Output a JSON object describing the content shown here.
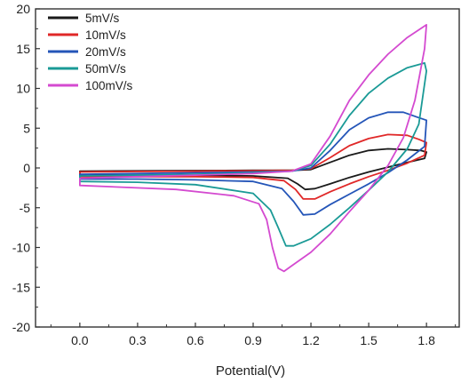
{
  "chart_data": {
    "type": "line",
    "title": "",
    "xlabel": "Potential(V)",
    "ylabel": "",
    "xlim": [
      -0.23,
      1.97
    ],
    "ylim": [
      -20,
      20
    ],
    "xticks": [
      0.0,
      0.3,
      0.6,
      0.9,
      1.2,
      1.5,
      1.8
    ],
    "xtick_labels": [
      "0.0",
      "0.3",
      "0.6",
      "0.9",
      "1.2",
      "1.5",
      "1.8"
    ],
    "yticks": [
      20,
      15,
      10,
      5,
      0,
      -5,
      -10,
      -15,
      -20
    ],
    "ytick_labels": [
      "20",
      "15",
      "10",
      "5",
      "0",
      "-5",
      "-10",
      "-15",
      "-20"
    ],
    "grid": false,
    "legend": "top-left",
    "series": [
      {
        "name": "5mV/s",
        "color": "#1a1a1a",
        "points": [
          [
            0.0,
            -0.4
          ],
          [
            0.3,
            -0.37
          ],
          [
            0.6,
            -0.34
          ],
          [
            0.9,
            -0.3
          ],
          [
            1.1,
            -0.3
          ],
          [
            1.2,
            -0.2
          ],
          [
            1.3,
            0.7
          ],
          [
            1.4,
            1.6
          ],
          [
            1.5,
            2.2
          ],
          [
            1.6,
            2.4
          ],
          [
            1.7,
            2.3
          ],
          [
            1.77,
            2.2
          ],
          [
            1.8,
            2.0
          ],
          [
            1.79,
            1.2
          ],
          [
            1.7,
            0.7
          ],
          [
            1.6,
            0.1
          ],
          [
            1.5,
            -0.5
          ],
          [
            1.4,
            -1.2
          ],
          [
            1.3,
            -2.0
          ],
          [
            1.22,
            -2.6
          ],
          [
            1.17,
            -2.7
          ],
          [
            1.13,
            -2.0
          ],
          [
            1.08,
            -1.3
          ],
          [
            0.9,
            -1.0
          ],
          [
            0.6,
            -0.9
          ],
          [
            0.3,
            -0.9
          ],
          [
            0.0,
            -0.9
          ]
        ]
      },
      {
        "name": "10mV/s",
        "color": "#e02828",
        "points": [
          [
            0.0,
            -0.5
          ],
          [
            0.3,
            -0.45
          ],
          [
            0.6,
            -0.4
          ],
          [
            0.9,
            -0.35
          ],
          [
            1.1,
            -0.3
          ],
          [
            1.2,
            -0.1
          ],
          [
            1.3,
            1.3
          ],
          [
            1.4,
            2.8
          ],
          [
            1.5,
            3.7
          ],
          [
            1.6,
            4.2
          ],
          [
            1.7,
            4.1
          ],
          [
            1.76,
            3.6
          ],
          [
            1.8,
            3.2
          ],
          [
            1.79,
            1.6
          ],
          [
            1.7,
            0.6
          ],
          [
            1.6,
            -0.3
          ],
          [
            1.5,
            -1.1
          ],
          [
            1.4,
            -2.0
          ],
          [
            1.3,
            -3.0
          ],
          [
            1.22,
            -3.9
          ],
          [
            1.16,
            -3.9
          ],
          [
            1.12,
            -2.7
          ],
          [
            1.06,
            -1.6
          ],
          [
            0.9,
            -1.2
          ],
          [
            0.6,
            -1.1
          ],
          [
            0.3,
            -1.1
          ],
          [
            0.0,
            -1.1
          ]
        ]
      },
      {
        "name": "20mV/s",
        "color": "#2455b8",
        "points": [
          [
            0.0,
            -0.8
          ],
          [
            0.3,
            -0.7
          ],
          [
            0.6,
            -0.6
          ],
          [
            0.9,
            -0.5
          ],
          [
            1.1,
            -0.4
          ],
          [
            1.2,
            0.0
          ],
          [
            1.3,
            2.2
          ],
          [
            1.4,
            4.8
          ],
          [
            1.5,
            6.3
          ],
          [
            1.6,
            7.0
          ],
          [
            1.68,
            7.0
          ],
          [
            1.75,
            6.4
          ],
          [
            1.8,
            6.0
          ],
          [
            1.79,
            2.7
          ],
          [
            1.7,
            1.0
          ],
          [
            1.6,
            -0.6
          ],
          [
            1.5,
            -2.0
          ],
          [
            1.4,
            -3.3
          ],
          [
            1.3,
            -4.6
          ],
          [
            1.22,
            -5.8
          ],
          [
            1.16,
            -5.9
          ],
          [
            1.11,
            -4.2
          ],
          [
            1.05,
            -2.6
          ],
          [
            0.9,
            -1.7
          ],
          [
            0.6,
            -1.5
          ],
          [
            0.3,
            -1.4
          ],
          [
            0.0,
            -1.4
          ]
        ]
      },
      {
        "name": "50mV/s",
        "color": "#1a9a96",
        "points": [
          [
            0.0,
            -1.0
          ],
          [
            0.3,
            -0.9
          ],
          [
            0.6,
            -0.8
          ],
          [
            0.9,
            -0.6
          ],
          [
            1.1,
            -0.4
          ],
          [
            1.2,
            0.3
          ],
          [
            1.3,
            3.0
          ],
          [
            1.4,
            6.6
          ],
          [
            1.5,
            9.4
          ],
          [
            1.6,
            11.3
          ],
          [
            1.7,
            12.6
          ],
          [
            1.79,
            13.2
          ],
          [
            1.8,
            12.2
          ],
          [
            1.76,
            5.5
          ],
          [
            1.7,
            2.4
          ],
          [
            1.6,
            -0.5
          ],
          [
            1.5,
            -2.8
          ],
          [
            1.4,
            -5.0
          ],
          [
            1.3,
            -7.1
          ],
          [
            1.2,
            -8.9
          ],
          [
            1.11,
            -9.8
          ],
          [
            1.07,
            -9.8
          ],
          [
            1.03,
            -7.5
          ],
          [
            0.99,
            -5.3
          ],
          [
            0.9,
            -3.2
          ],
          [
            0.6,
            -2.1
          ],
          [
            0.3,
            -1.8
          ],
          [
            0.0,
            -1.7
          ]
        ]
      },
      {
        "name": "100mV/s",
        "color": "#d44ad0",
        "points": [
          [
            0.0,
            -1.3
          ],
          [
            0.3,
            -1.1
          ],
          [
            0.6,
            -0.9
          ],
          [
            0.9,
            -0.7
          ],
          [
            1.1,
            -0.4
          ],
          [
            1.2,
            0.5
          ],
          [
            1.3,
            4.0
          ],
          [
            1.4,
            8.5
          ],
          [
            1.5,
            11.7
          ],
          [
            1.6,
            14.3
          ],
          [
            1.7,
            16.4
          ],
          [
            1.8,
            18.0
          ],
          [
            1.79,
            15.0
          ],
          [
            1.74,
            8.5
          ],
          [
            1.68,
            3.8
          ],
          [
            1.6,
            0.3
          ],
          [
            1.5,
            -2.8
          ],
          [
            1.4,
            -5.5
          ],
          [
            1.3,
            -8.3
          ],
          [
            1.2,
            -10.6
          ],
          [
            1.1,
            -12.3
          ],
          [
            1.06,
            -13.0
          ],
          [
            1.03,
            -12.6
          ],
          [
            1.0,
            -10.0
          ],
          [
            0.97,
            -6.5
          ],
          [
            0.93,
            -4.5
          ],
          [
            0.8,
            -3.5
          ],
          [
            0.5,
            -2.7
          ],
          [
            0.2,
            -2.4
          ],
          [
            0.0,
            -2.2
          ]
        ]
      }
    ]
  }
}
